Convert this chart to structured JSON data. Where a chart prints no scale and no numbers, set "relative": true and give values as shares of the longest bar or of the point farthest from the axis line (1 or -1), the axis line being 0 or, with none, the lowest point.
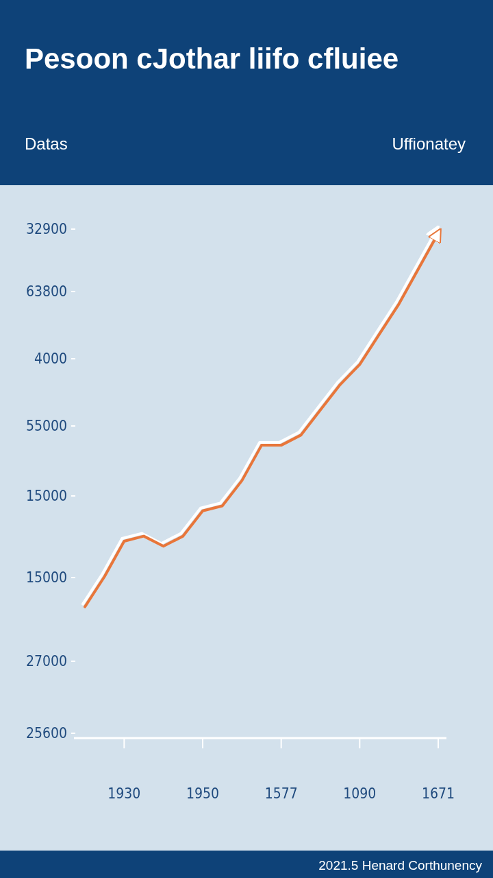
{
  "chart_data": {
    "type": "line",
    "title": "Pesoon cJothar liifo cfluiee",
    "annotations": [
      "Datas",
      "Uffionatey",
      "2021.5 Henard Corthunency",
      "25600",
      "27000",
      "15000",
      "15000",
      "55000",
      "4000",
      "63800",
      "32900"
    ],
    "relative": true,
    "categories": [
      null,
      null,
      "1930",
      null,
      null,
      null,
      "1950",
      null,
      null,
      null,
      "1577",
      null,
      null,
      null,
      "1090",
      null,
      null,
      null,
      "1671"
    ],
    "series": [
      {
        "color": "#e8763a",
        "values": [
          0.26,
          0.32,
          0.39,
          0.4,
          0.38,
          0.4,
          0.45,
          0.46,
          0.51,
          0.58,
          0.58,
          0.6,
          0.65,
          0.7,
          0.74,
          0.8,
          0.86,
          0.93,
          1.0
        ]
      }
    ],
    "marker": "none",
    "line_style": "solid"
  }
}
